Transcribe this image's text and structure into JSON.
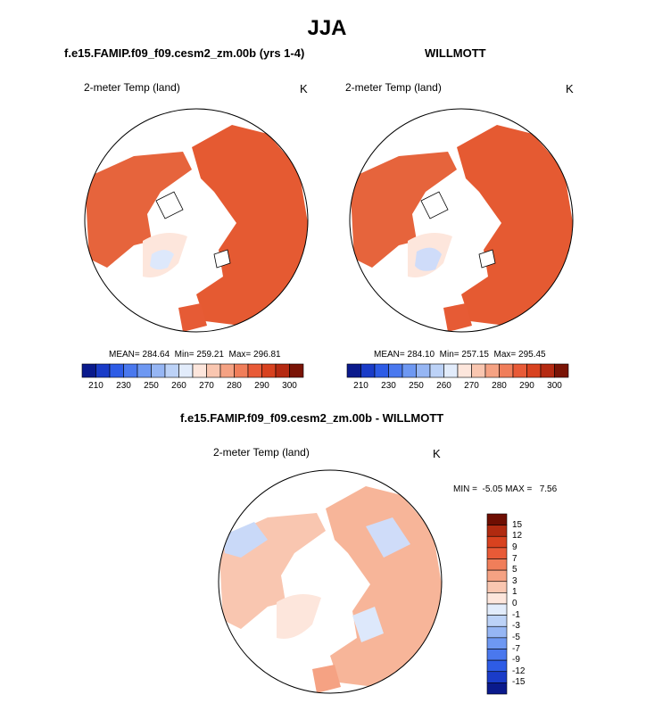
{
  "title": "JJA",
  "panels": [
    {
      "id": "model",
      "title": "f.e15.FAMIP.f09_f09.cesm2_zm.00b (yrs 1-4)",
      "variable": "2-meter Temp (land)",
      "units": "K",
      "stats": "MEAN= 284.64  Min= 259.21  Max= 296.81"
    },
    {
      "id": "obs",
      "title": "WILLMOTT",
      "variable": "2-meter Temp (land)",
      "units": "K",
      "stats": "MEAN= 284.10  Min= 257.15  Max= 295.45"
    },
    {
      "id": "diff",
      "title": "f.e15.FAMIP.f09_f09.cesm2_zm.00b - WILLMOTT",
      "variable": "2-meter Temp (land)",
      "units": "K",
      "stats": "MIN =  -5.05 MAX =   7.56"
    }
  ],
  "abs_colorbar": {
    "labels": [
      "210",
      "230",
      "250",
      "260",
      "270",
      "280",
      "290",
      "300"
    ],
    "colors": [
      "#0a1a8c",
      "#1a3cc8",
      "#2e5ce6",
      "#4a78ee",
      "#6e98f2",
      "#96b6f4",
      "#bcd2f7",
      "#e2ecfb",
      "#fde6dc",
      "#f9c6b0",
      "#f5a283",
      "#f07e5a",
      "#e85a37",
      "#d8421f",
      "#b52a12",
      "#7a1406"
    ]
  },
  "diff_colorbar": {
    "labels": [
      "15",
      "12",
      "9",
      "7",
      "5",
      "3",
      "1",
      "0",
      "-1",
      "-3",
      "-5",
      "-7",
      "-9",
      "-12",
      "-15"
    ],
    "colors": [
      "#6e0e02",
      "#b02a10",
      "#d8421f",
      "#e85a37",
      "#f07e5a",
      "#f5a283",
      "#f9c6b0",
      "#fde6dc",
      "#e2ecfb",
      "#bcd2f7",
      "#96b6f4",
      "#6e98f2",
      "#4a78ee",
      "#2e5ce6",
      "#1a3cc8",
      "#0a1a8c"
    ]
  }
}
